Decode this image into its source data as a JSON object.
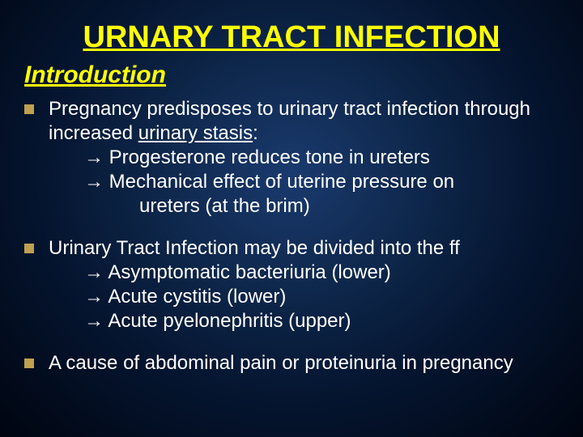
{
  "slide": {
    "title": "URNARY TRACT INFECTION",
    "subtitle": "Introduction",
    "background_gradient_colors": [
      "#1a3a6e",
      "#0d2548",
      "#051530",
      "#000510"
    ],
    "title_color": "#ffff00",
    "text_color": "#ffffff",
    "bullet_color": "#bfa050",
    "title_fontsize": 38,
    "subtitle_fontsize": 30,
    "body_fontsize": 24,
    "bullets": [
      {
        "main_pre": "Pregnancy predisposes to urinary tract infection through increased ",
        "underlined": "urinary stasis",
        "main_post": ":",
        "subs": [
          {
            "arrow": "→",
            "text": "Progesterone reduces tone in ureters"
          },
          {
            "arrow": "→",
            "text": "Mechanical effect of uterine pressure on",
            "cont": "ureters (at the brim)"
          }
        ]
      },
      {
        "main_pre": "Urinary Tract Infection may be divided into the ff",
        "underlined": "",
        "main_post": "",
        "subs": [
          {
            "arrow": "→",
            "text": "Asymptomatic bacteriuria (lower)"
          },
          {
            "arrow": "→",
            "text": "Acute cystitis (lower)"
          },
          {
            "arrow": "→",
            "text": "Acute pyelonephritis (upper)"
          }
        ]
      },
      {
        "main_pre": "A cause of abdominal pain or proteinuria in pregnancy",
        "underlined": "",
        "main_post": "",
        "subs": []
      }
    ]
  }
}
